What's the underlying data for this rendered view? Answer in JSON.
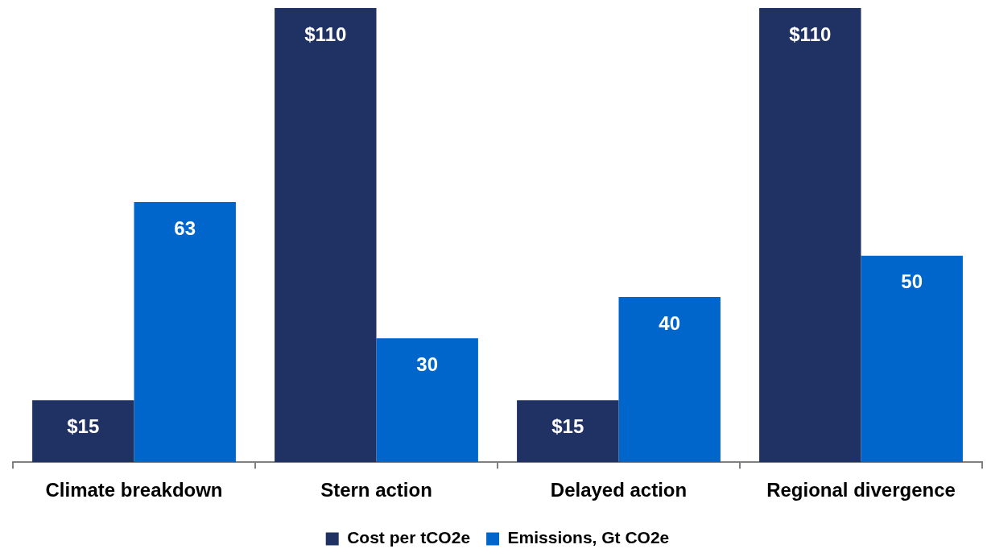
{
  "chart_data": {
    "type": "bar",
    "categories": [
      "Climate breakdown",
      "Stern action",
      "Delayed action",
      "Regional divergence"
    ],
    "series": [
      {
        "name": "Cost per tCO2e",
        "color": "#203263",
        "values": [
          15,
          110,
          15,
          110
        ],
        "value_labels": [
          "$15",
          "$110",
          "$15",
          "$110"
        ]
      },
      {
        "name": "Emissions, Gt CO2e",
        "color": "#0066cc",
        "values": [
          63,
          30,
          40,
          50
        ],
        "value_labels": [
          "63",
          "30",
          "40",
          "50"
        ]
      }
    ],
    "ylim": [
      0,
      110
    ],
    "grid": false,
    "legend": "bottom"
  }
}
